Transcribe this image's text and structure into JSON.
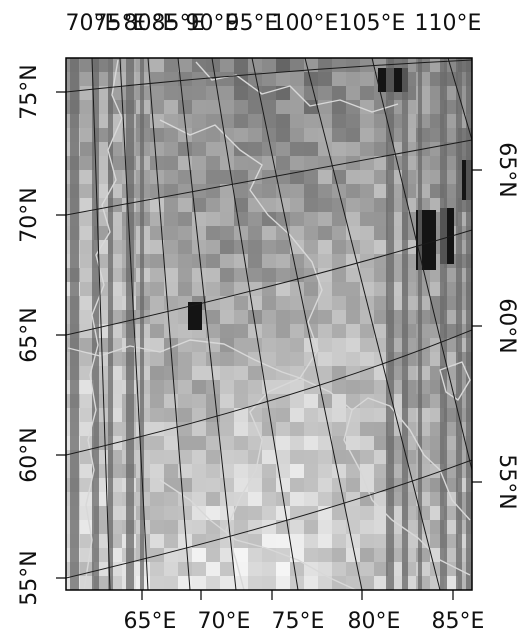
{
  "map": {
    "type": "satellite-raster-map",
    "colors": {
      "frame": "#000000",
      "graticule": "#1a1a1a",
      "borders": "#d8d8d8",
      "swath_gap": "#6a6a6a",
      "dark_cell": "#141414"
    },
    "top_labels": [
      "70°E",
      "75°E",
      "80°E",
      "85°E",
      "90°E",
      "95°E",
      "100°E",
      "105°E",
      "110°E"
    ],
    "bottom_labels": [
      "65°E",
      "70°E",
      "75°E",
      "80°E",
      "85°E"
    ],
    "left_labels": [
      "75°N",
      "70°N",
      "65°N",
      "60°N",
      "55°N"
    ],
    "right_labels": [
      "65°N",
      "60°N",
      "55°N"
    ]
  }
}
